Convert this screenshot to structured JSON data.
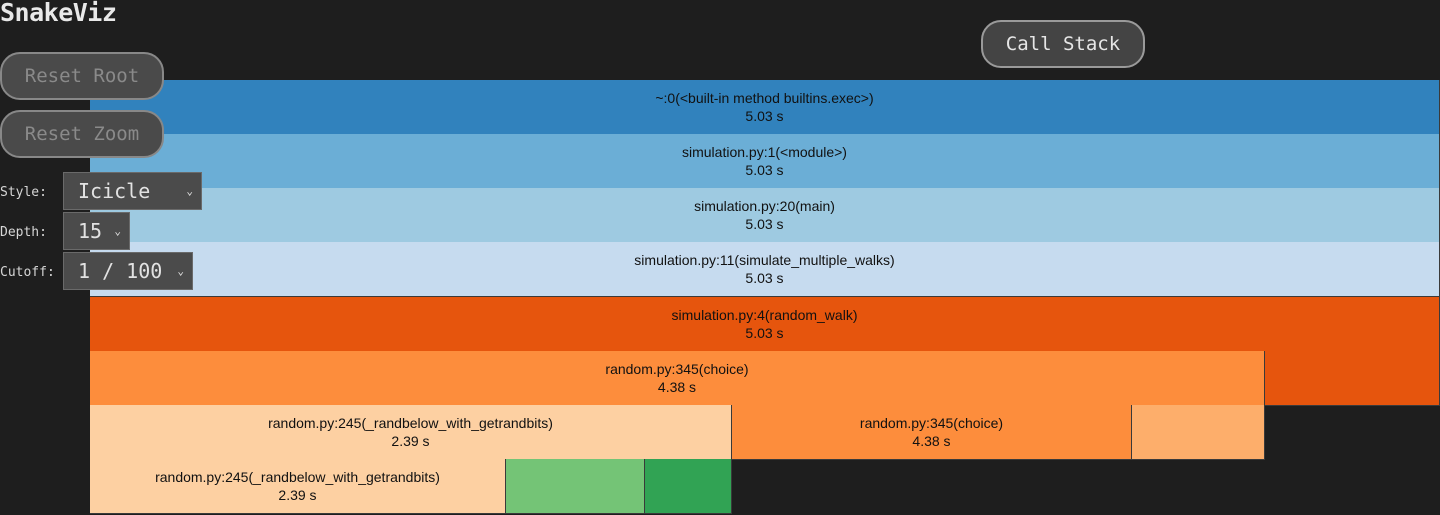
{
  "app": {
    "title": "SnakeViz"
  },
  "controls": {
    "reset_root": "Reset Root",
    "reset_zoom": "Reset Zoom",
    "call_stack": "Call Stack",
    "style_label": "Style:",
    "style_value": "Icicle",
    "depth_label": "Depth:",
    "depth_value": "15",
    "cutoff_label": "Cutoff:",
    "cutoff_value": "1 / 100"
  },
  "colors": {
    "background": "#1e1e1e",
    "blue_1": "#3182bd",
    "blue_2": "#6baed6",
    "blue_3": "#9ecae1",
    "blue_4": "#c6dbef",
    "orange_1": "#e6550d",
    "orange_2": "#fd8d3c",
    "orange_3": "#fdae6b",
    "orange_4": "#fdd0a2",
    "green_1": "#74c476",
    "green_2": "#31a354"
  },
  "icicle": {
    "rows": [
      [
        {
          "label": "~:0(<built-in method builtins.exec>)",
          "time": "5.03 s",
          "color": "#3182bd"
        }
      ],
      [
        {
          "label": "simulation.py:1(<module>)",
          "time": "5.03 s",
          "color": "#6baed6"
        }
      ],
      [
        {
          "label": "simulation.py:20(main)",
          "time": "5.03 s",
          "color": "#9ecae1"
        }
      ],
      [
        {
          "label": "simulation.py:11(simulate_multiple_walks)",
          "time": "5.03 s",
          "color": "#c6dbef"
        }
      ],
      [
        {
          "label": "simulation.py:4(random_walk)",
          "time": "5.03 s",
          "color": "#e6550d"
        }
      ],
      [
        {
          "label": "random.py:345(choice)",
          "time": "4.38 s",
          "color": "#fd8d3c"
        },
        {
          "label": "",
          "time": "",
          "color": "#e6550d"
        }
      ],
      [
        {
          "label": "random.py:245(_randbelow_with_getrandbits)",
          "time": "2.39 s",
          "color": "#fdd0a2"
        },
        {
          "label": "random.py:345(choice)",
          "time": "4.38 s",
          "color": "#fd8d3c"
        },
        {
          "label": "",
          "time": "",
          "color": "#fdae6b"
        }
      ],
      [
        {
          "label": "random.py:245(_randbelow_with_getrandbits)",
          "time": "2.39 s",
          "color": "#fdd0a2"
        },
        {
          "label": "",
          "time": "",
          "color": "#74c476"
        },
        {
          "label": "",
          "time": "",
          "color": "#31a354"
        }
      ]
    ]
  }
}
